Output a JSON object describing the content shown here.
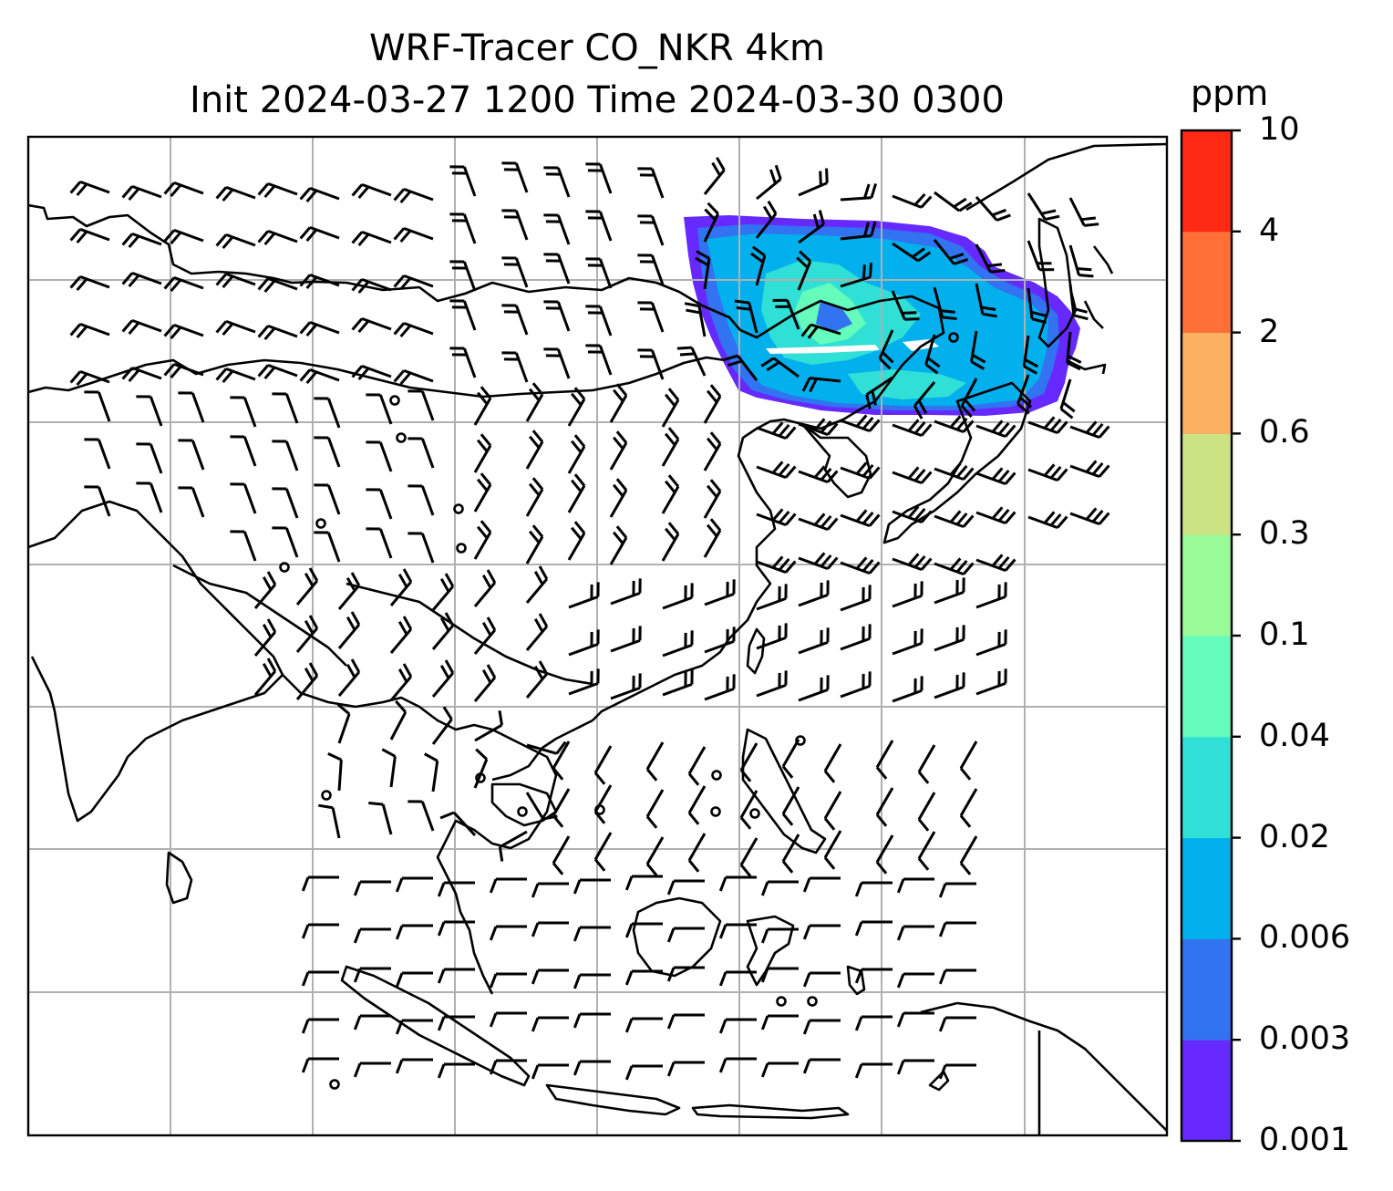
{
  "title": {
    "line1": "WRF-Tracer CO_NKR 4km",
    "line2": "Init 2024-03-27 1200 Time 2024-03-30 0300"
  },
  "colorbar": {
    "unit": "ppm",
    "levels": [
      "0.001",
      "0.003",
      "0.006",
      "0.02",
      "0.04",
      "0.1",
      "0.3",
      "0.6",
      "2",
      "4",
      "10"
    ],
    "colors": [
      "#6629ff",
      "#3173f0",
      "#01b0ec",
      "#30e0d6",
      "#64fbbc",
      "#98fb98",
      "#cce383",
      "#fcb062",
      "#ff7038",
      "#ff2a14"
    ]
  },
  "map": {
    "background": "#ffffff",
    "gridline_color": "#b0b0b0",
    "coastline_color": "#000000"
  }
}
